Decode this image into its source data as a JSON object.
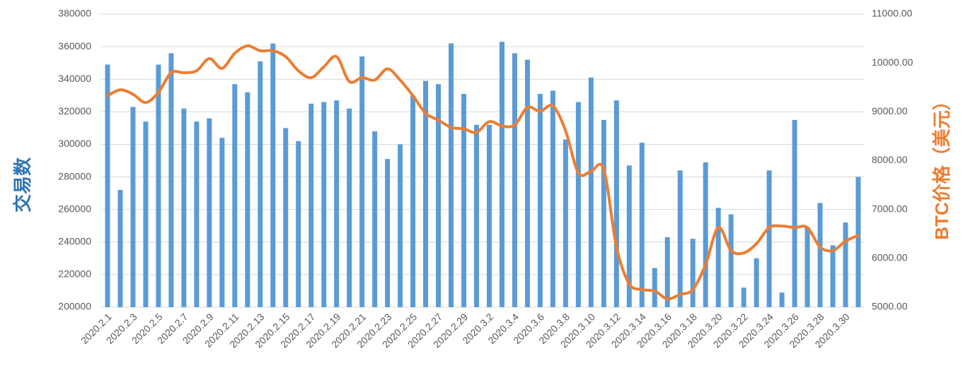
{
  "chart_data": {
    "type": "bar-line",
    "y_label": "交易数",
    "y2_label": "BTC价格（美元）",
    "categories": [
      "2020.2.1",
      null,
      "2020.2.3",
      null,
      "2020.2.5",
      null,
      "2020.2.7",
      null,
      "2020.2.9",
      null,
      "2020.2.11",
      null,
      "2020.2.13",
      null,
      "2020.2.15",
      null,
      "2020.2.17",
      null,
      "2020.2.19",
      null,
      "2020.2.21",
      null,
      "2020.2.23",
      null,
      "2020.2.25",
      null,
      "2020.2.27",
      null,
      "2020.2.29",
      null,
      "2020.3.2",
      null,
      "2020.3.4",
      null,
      "2020.3.6",
      null,
      "2020.3.8",
      null,
      "2020.3.10",
      null,
      "2020.3.12",
      null,
      "2020.3.14",
      null,
      "2020.3.16",
      null,
      "2020.3.18",
      null,
      "2020.3.20",
      null,
      "2020.3.22",
      null,
      "2020.3.24",
      null,
      "2020.3.26",
      null,
      "2020.3.28",
      null,
      "2020.3.30",
      null
    ],
    "series": [
      {
        "type": "bar",
        "color": "#5b9bd5",
        "values": [
          349000,
          272000,
          323000,
          314000,
          349000,
          356000,
          322000,
          314000,
          316000,
          304000,
          337000,
          332000,
          351000,
          362000,
          310000,
          302000,
          325000,
          326000,
          327000,
          322000,
          354000,
          308000,
          291000,
          300000,
          330000,
          339000,
          337000,
          362000,
          331000,
          312000,
          312000,
          363000,
          356000,
          352000,
          331000,
          333000,
          303000,
          326000,
          341000,
          315000,
          327000,
          287000,
          301000,
          224000,
          243000,
          284000,
          242000,
          289000,
          261000,
          257000,
          212000,
          230000,
          284000,
          209000,
          315000,
          249000,
          264000,
          238000,
          252000,
          280000
        ]
      },
      {
        "type": "line",
        "axis": "y2",
        "color": "#ed7d31",
        "values": [
          9330,
          9450,
          9360,
          9190,
          9400,
          9800,
          9800,
          9840,
          10090,
          9890,
          10200,
          10350,
          10250,
          10250,
          10130,
          9840,
          9700,
          9920,
          10130,
          9620,
          9700,
          9650,
          9880,
          9650,
          9330,
          8970,
          8830,
          8680,
          8650,
          8580,
          8800,
          8710,
          8730,
          9090,
          9010,
          9120,
          8610,
          7750,
          7780,
          7820,
          6230,
          5480,
          5360,
          5330,
          5170,
          5260,
          5360,
          5870,
          6630,
          6160,
          6110,
          6300,
          6630,
          6660,
          6630,
          6630,
          6230,
          6160,
          6350,
          6470
        ]
      }
    ],
    "ylim": [
      200000,
      380000
    ],
    "yticks": [
      200000,
      220000,
      240000,
      260000,
      280000,
      300000,
      320000,
      340000,
      360000,
      380000
    ],
    "y2lim": [
      5000,
      11000
    ],
    "y2ticks": [
      {
        "value": 5000,
        "label": "5000.00"
      },
      {
        "value": 6000,
        "label": "6000.00"
      },
      {
        "value": 7000,
        "label": "7000.00"
      },
      {
        "value": 8000,
        "label": "8000.00"
      },
      {
        "value": 9000,
        "label": "9000.00"
      },
      {
        "value": 10000,
        "label": "10000.00"
      },
      {
        "value": 11000,
        "label": "11000.00"
      }
    ],
    "grid": true
  }
}
